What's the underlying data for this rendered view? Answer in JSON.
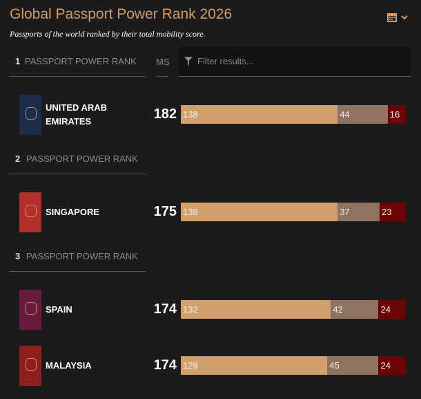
{
  "header": {
    "title": "Global Passport Power Rank 2026",
    "subtitle": "Passports of the world ranked by their total mobility score."
  },
  "columns": {
    "score": "MS",
    "filter": "Filter results..."
  },
  "segment_colors": [
    "#d39f6c",
    "#8f7360",
    "#6c0303"
  ],
  "groups": [
    {
      "rank": 1,
      "rank_label": "PASSPORT POWER RANK",
      "entries": [
        {
          "country": "UNITED ARAB EMIRATES",
          "score": 182,
          "segments": [
            138,
            44,
            16
          ]
        }
      ]
    },
    {
      "rank": 2,
      "rank_label": "PASSPORT POWER RANK",
      "entries": [
        {
          "country": "SINGAPORE",
          "score": 175,
          "segments": [
            138,
            37,
            23
          ]
        }
      ]
    },
    {
      "rank": 3,
      "rank_label": "PASSPORT POWER RANK",
      "entries": [
        {
          "country": "SPAIN",
          "score": 174,
          "segments": [
            132,
            42,
            24
          ]
        },
        {
          "country": "MALAYSIA",
          "score": 174,
          "segments": [
            129,
            45,
            24
          ]
        }
      ]
    }
  ]
}
